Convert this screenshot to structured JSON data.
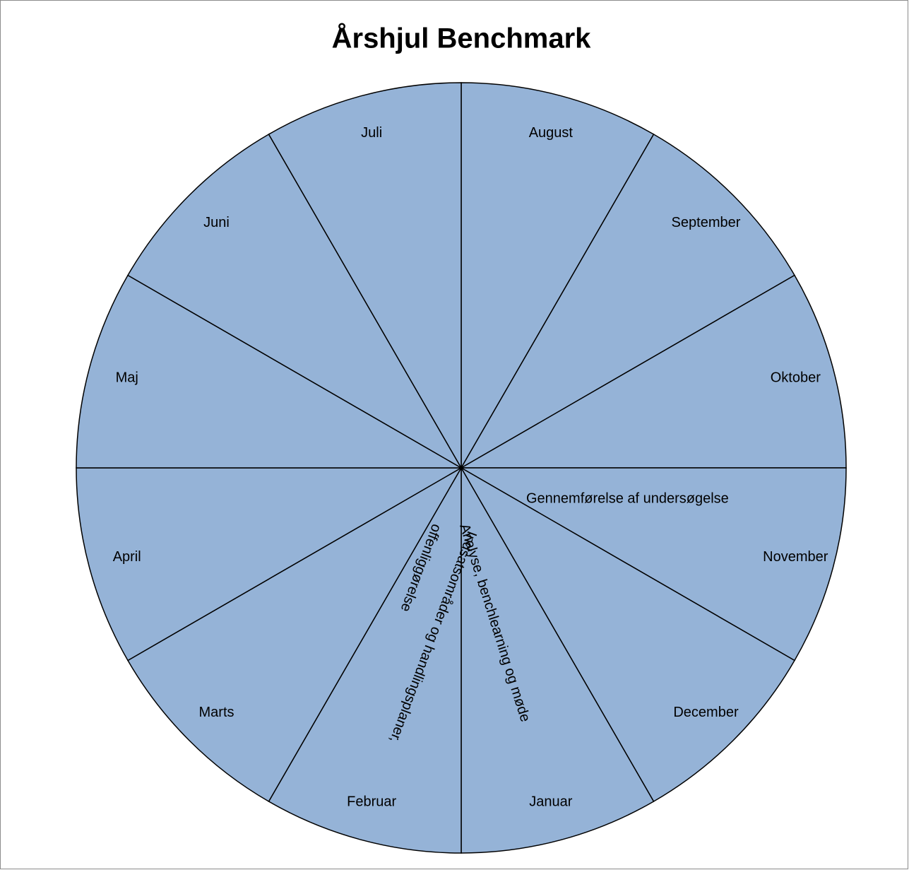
{
  "chart_data": {
    "type": "pie",
    "title": "Årshjul Benchmark",
    "categories": [
      "August",
      "September",
      "Oktober",
      "November",
      "December",
      "Januar",
      "Februar",
      "Marts",
      "April",
      "Maj",
      "Juni",
      "Juli"
    ],
    "values": [
      1,
      1,
      1,
      1,
      1,
      1,
      1,
      1,
      1,
      1,
      1,
      1
    ],
    "color": "#95b3d7",
    "annotations": [
      {
        "lines": [
          "Gennemførelse af undersøgelse"
        ]
      },
      {
        "lines": [
          "Analyse, benchlearning og møde"
        ]
      },
      {
        "lines": [
          "Indsatsområder og handlingsplaner,",
          "offenliggørelse"
        ]
      }
    ]
  }
}
